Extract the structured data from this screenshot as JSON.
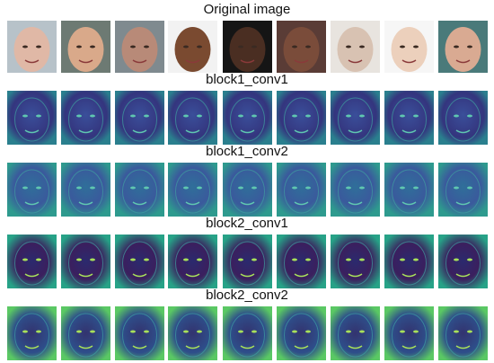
{
  "sections": [
    {
      "label": "Original image"
    },
    {
      "label": "block1_conv1"
    },
    {
      "label": "block1_conv2"
    },
    {
      "label": "block2_conv1"
    },
    {
      "label": "block2_conv2"
    }
  ]
}
